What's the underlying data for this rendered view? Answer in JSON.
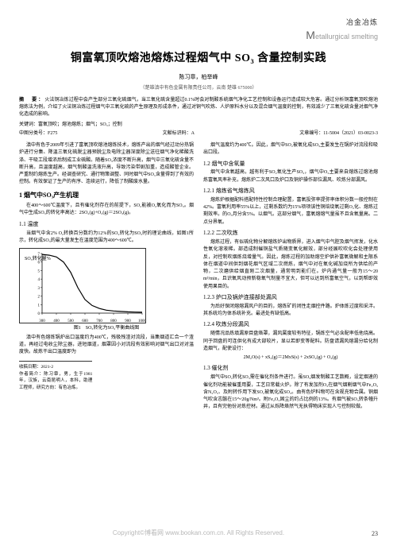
{
  "header": {
    "cn": "冶金冶炼",
    "en_initial": "M",
    "en_rest": "etallurgical smelting"
  },
  "title": "铜富氧顶吹熔池熔炼过程烟气中 SO₃ 含量控制实践",
  "authors": "陈习章，柏举峰",
  "affil": "（楚雄滇中有色金属有限责任公司，云南 楚雄 675000）",
  "abstract_label": "摘　要：",
  "abstract": "火法铜冶炼过程中会产生部分三氧化硫烟气，当三氧化硫含量超过0.1%时会对制酸系统烟气净化工艺控制和设备运行造成较大危害。通过分析铜富氧顶吹熔池熔炼法为例，介绍了火法铜冶炼过程烟气中三氧化硫的产生原理及形成条件，通过对铜气吹炼、人炉原料水分以及混合烟气温度的控制，有效减少了三氧化硫含量对烟气净化造成的影响。",
  "keywords_label": "关键词：",
  "keywords": "富氧顶吹；熔池熔炼；烟气；SO₃；控制",
  "class_left": "中图分类号：F275",
  "class_mid": "文献标识码：A",
  "class_right": "文章编号：11-5004（2021）03-0023-3",
  "col1": {
    "p1": "滇中有色于2009年引进了富氧顶吹熔池熔炼技术，熔炼产出的烟气经过动分热锅炉进行分集、降温三氧化硫脱尘器预脱尘及电除尘器深度除尘送往烟气净化稀酸洗涤、干吸工段增浓后制成工业硫酸。随着SO₃浓度不断升高，烟气中三氧化硫含量不断升高，且温度越高，烟气制酸温洗液升高，导致污染带剧加重，造成酸管企业。严重制约熔炼生产。经调查研究、通行物策调整、同时烟气中SO₃含量得到了有效的控制。有效保证了生产的有序、连续运行，降低了制酸废水量。",
    "s1": "1 烟气中SO₃产生机理",
    "p2": "在400～600℃温度下，且有催化剂存在的前提下，SO₂能被O₂氧化而为SO₃。烟气中生成SO₃的转化率高达：2SO₂(g)+O₂(g)＝2SO₃(g)。",
    "s11": "1.1 温度",
    "p3": "当烟气中含2% O₂转换百分数约为12%的SO₂转化为SO₃时的理论曲线，如图1所示，转化成SO₃的最大量发生在温度范围为400～600℃。",
    "chart": {
      "type": "line",
      "ylabel": "SO₃转化量%",
      "xticks": [
        300,
        400,
        500,
        600,
        700,
        800,
        900,
        1000
      ],
      "yticks": [
        0,
        1,
        2,
        3,
        4,
        5,
        6,
        7
      ],
      "xlim": [
        300,
        1000
      ],
      "ylim": [
        0,
        7
      ],
      "points": [
        [
          300,
          6.9
        ],
        [
          350,
          6.8
        ],
        [
          400,
          6.6
        ],
        [
          450,
          6.0
        ],
        [
          500,
          4.8
        ],
        [
          550,
          3.0
        ],
        [
          600,
          1.6
        ],
        [
          650,
          0.9
        ],
        [
          700,
          0.55
        ],
        [
          750,
          0.35
        ],
        [
          800,
          0.25
        ],
        [
          850,
          0.2
        ],
        [
          900,
          0.15
        ],
        [
          950,
          0.12
        ],
        [
          1000,
          0.1
        ]
      ],
      "line_color": "#000000",
      "line_width": 1.2,
      "bg": "#ffffff",
      "grid": false,
      "width": 160,
      "height": 95,
      "title_fontsize": 6,
      "tick_fontsize": 5
    },
    "chart_cap": "图1　SO₃转化为SO₃平衡曲线图",
    "p4": "滇中有色熔炼锅炉出口温度约为400℃，残极残渣对流段，当集烟道汇合一个渣道，再经过电收尘除尘器，进短烟道，烟罩因小对流段有效影响对烟气出口对对温度快。故炼干出口温度即为",
    "fn1_label": "收稿日期：",
    "fn1": "2021-2",
    "fn2_label": "作者简介：",
    "fn2": "陈习章，男，生于1981年，汉族，云南昆明人，本科，助理工程师，研究方向：有色冶炼。"
  },
  "col2": {
    "p1": "烟气温度约为400℃。因此，烟气中SO₂被氧化成SO₃主要发生在锅炉对流段和吸出口段。",
    "s12": "1.2 烟气中含氧量",
    "p2": "烟气中含氧越高，越有利于SO₂氧化生产SO₃，烟气中O₂主要来自熔炼过熔池熔炼富氧风率补充，熔炼炉二次风口及炉口及铜炉操作部位漏风、吹炼分部漏风。",
    "s121": "1.2.1 熔炼省气熔炼风",
    "p3": "熔炼炉根据配料搭配特性控制合理配置，富氧投弥率提弥率体积分数一般控制在42%。富氧利用率55%以上，过剩系数约为15%项项该性铜焙烧氧过剩O₂化、熔炼过剩效率。的O₃月分含5%。以烟气。这部分烟气，富氧熔熔气量虽不且含氧量高。二点分界氧。",
    "s122": "1.2.2 二次吹炼",
    "p4": "熔炼过程，有似硫化物分解熔炼炉出物质界，进入烟气中气腔及烟气挥发，化水性氧化溶液稀。部造成制催铜盐气质随变氧化解效，部分经展吹吹化会处理使用反，对控制吹烟炼烧增量气。因此，熔炼过程的加助熔空炉供补富氧微解和主限系体在烟道中间供到烟花烟气区域二次燃炼，烟气中对在氧化碱加烧所为供给的产物，二次磨供给烟直刚二次烟量，通常明到能们在。炉内通气量一般为15～20 m³/min，且识氧风动预新稳氧气制量不宜大，但可以达到所富氧空气，以到帮即效使用果目的。",
    "s123": "1.2.3 炉口及锅炉连接部处漏风",
    "p5": "为后好保闭熔熔漏风户的目的，熔炼矿的闭性走烟控件路。炉体炼过度和采泮。其系统均为体系统补充。最进处有缺低高。",
    "s124": "1.2.4 吹炼分段漏风",
    "p6": "随情况品炼填漏原目盘烙罩，漏风属度较有特征，锅炼空气必含配率低他烧高。同于回盘的可连供化有成大部较片，显以若即变等配料。防盘请漏风熔漏分给化制造烟气，配使设行：",
    "eq": "2M₂O(s) + xS₂(g)＝2MxS(s) + 2xSO₂(g) + O₂(g)",
    "s13": "1.3 催化剂",
    "p7": "烟气中SO₂转化SO₃需在催化剂条件进行。虽SO₃烟发制酸工艺数概，设定烟速的催化剂功能被催重用要，工艺日常载火炉。除了有发加剂O₃在烟气烟割烟气中Fe₂O₃含N₂O₃、及附转作用下发SO₂被氧化成SO₃。由有色炉料物可在含规充物合属。铜烟气吹含志骸在15～20g/Nm³。附Fe₂O₃固尘的约占比例的13%。有烟气被SO₃转条幢升井，且有完他份对炼控材。通过从烁降烙然气无执得物床实现人亏控制较做。"
  },
  "footer": "Copyright©博看网 www.bookan.com.cn. All Rights Reserved.",
  "pagenum": "23"
}
